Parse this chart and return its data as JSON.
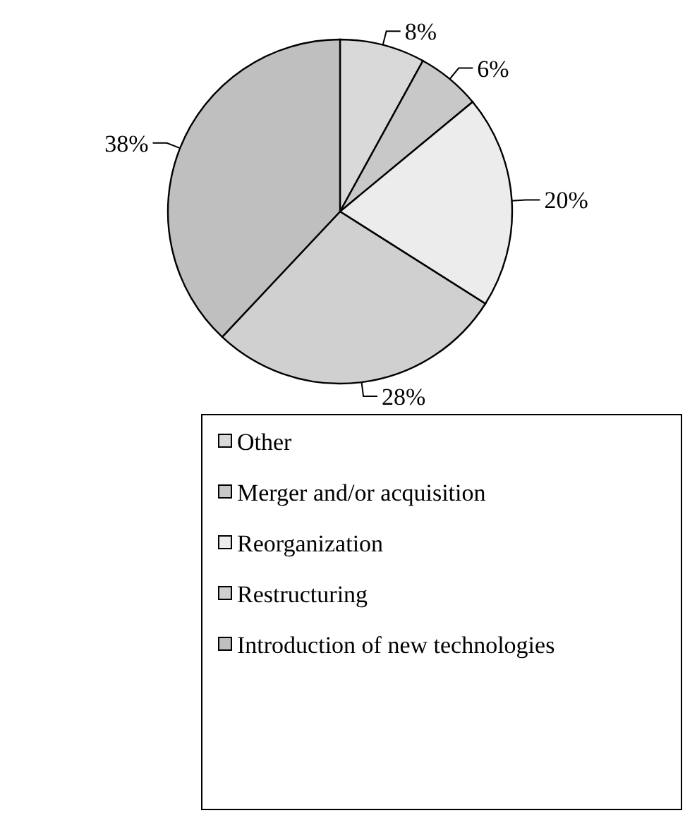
{
  "chart_data": {
    "type": "pie",
    "categories": [
      "Other",
      "Merger and/or acquisition",
      "Reorganization",
      "Restructuring",
      "Introduction of new technologies"
    ],
    "values": [
      8,
      6,
      20,
      28,
      38
    ],
    "colors": [
      "#d9d9d9",
      "#c8c8c8",
      "#ececec",
      "#d0d0d0",
      "#bfbfbf"
    ],
    "value_labels": [
      "8%",
      "6%",
      "20%",
      "28%",
      "38%"
    ],
    "legend": "bottom"
  }
}
